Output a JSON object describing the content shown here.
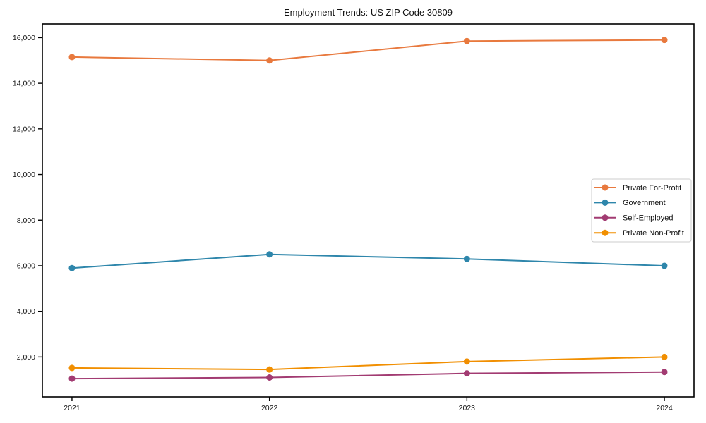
{
  "chart_data": {
    "type": "line",
    "title": "Employment Trends: US ZIP Code 30809",
    "xlabel": "",
    "ylabel": "",
    "categories": [
      "2021",
      "2022",
      "2023",
      "2024"
    ],
    "series": [
      {
        "name": "Private For-Profit",
        "color": "#E8793E",
        "values": [
          15150,
          15000,
          15850,
          15900
        ]
      },
      {
        "name": "Government",
        "color": "#2E86AB",
        "values": [
          5900,
          6500,
          6300,
          6000
        ]
      },
      {
        "name": "Self-Employed",
        "color": "#A23B72",
        "values": [
          1050,
          1100,
          1280,
          1340
        ]
      },
      {
        "name": "Private Non-Profit",
        "color": "#F18F01",
        "values": [
          1520,
          1450,
          1800,
          2000
        ]
      }
    ],
    "ylim": [
      250,
      16600
    ],
    "yticks": [
      2000,
      4000,
      6000,
      8000,
      10000,
      12000,
      14000,
      16000
    ],
    "ytick_format": "comma",
    "grid": false,
    "legend_position": "center-right",
    "marker": "circle",
    "line_width": 2,
    "marker_radius": 4.5,
    "axis_color": "#000000",
    "background_color": "#ffffff"
  }
}
